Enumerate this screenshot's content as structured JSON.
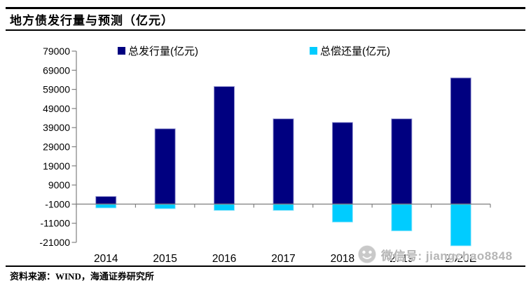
{
  "header": {
    "title": "地方债发行量与预测（亿元）"
  },
  "footer": {
    "source": "资料来源：WIND，海通证券研究所"
  },
  "watermark": {
    "icon": "wechat-logo",
    "text": "微信号: jiangchao8848"
  },
  "chart_data": {
    "type": "bar",
    "title": "地方债发行量与预测（亿元）",
    "categories": [
      "2014",
      "2015",
      "2016",
      "2017",
      "2018",
      "2019",
      "2020E"
    ],
    "series": [
      {
        "name": "总发行量(亿元)",
        "color": "#000080",
        "values": [
          3000,
          38400,
          60500,
          43600,
          41700,
          43600,
          65000
        ]
      },
      {
        "name": "总偿还量(亿元)",
        "color": "#00CCFF",
        "values": [
          -3000,
          -3400,
          -4300,
          -4300,
          -10400,
          -15000,
          -22800
        ]
      }
    ],
    "xlabel": "",
    "ylabel": "",
    "ylim": [
      -21000,
      79000
    ],
    "yticks": [
      79000,
      69000,
      59000,
      49000,
      39000,
      29000,
      19000,
      9000,
      -1000,
      -11000,
      -21000
    ],
    "baseline": -1000,
    "grid": false,
    "legend_position": "top"
  }
}
